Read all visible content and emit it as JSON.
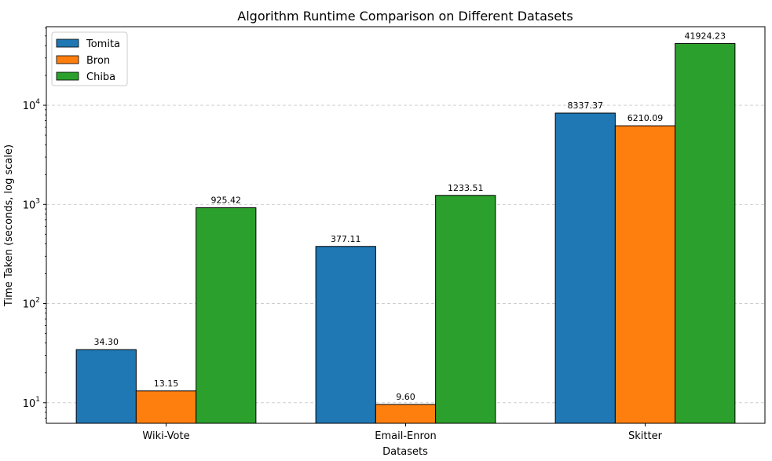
{
  "chart_data": {
    "type": "bar",
    "title": "Algorithm Runtime Comparison on Different Datasets",
    "xlabel": "Datasets",
    "ylabel": "Time Taken (seconds, log scale)",
    "yscale": "log",
    "ylim": [
      6.2,
      62000
    ],
    "yticks": [
      {
        "value": 10,
        "base": "10",
        "exp": "1"
      },
      {
        "value": 100,
        "base": "10",
        "exp": "2"
      },
      {
        "value": 1000,
        "base": "10",
        "exp": "3"
      },
      {
        "value": 10000,
        "base": "10",
        "exp": "4"
      }
    ],
    "grid": "y-dashed",
    "legend_position": "top-left",
    "categories": [
      "Wiki-Vote",
      "Email-Enron",
      "Skitter"
    ],
    "series": [
      {
        "name": "Tomita",
        "color": "#1f77b4",
        "values": [
          34.3,
          377.11,
          8337.37
        ],
        "labels": [
          "34.30",
          "377.11",
          "8337.37"
        ]
      },
      {
        "name": "Bron",
        "color": "#ff7f0e",
        "values": [
          13.15,
          9.6,
          6210.09
        ],
        "labels": [
          "13.15",
          "9.60",
          "6210.09"
        ]
      },
      {
        "name": "Chiba",
        "color": "#2ca02c",
        "values": [
          925.42,
          1233.51,
          41924.23
        ],
        "labels": [
          "925.42",
          "1233.51",
          "41924.23"
        ]
      }
    ]
  }
}
